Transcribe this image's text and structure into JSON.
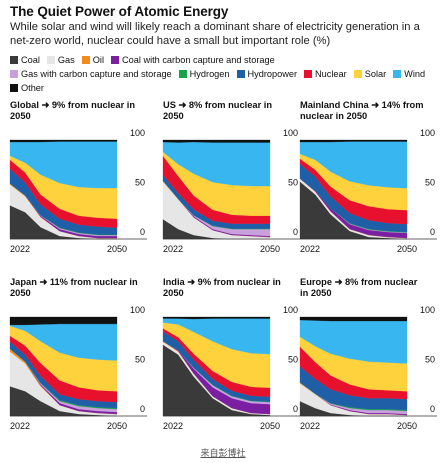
{
  "title": "The Quiet Power of Atomic Energy",
  "subtitle": "While solar and wind will likely reach a dominant share of electricity generation in a net-zero world, nuclear could have a small but important role (%)",
  "source_link": "来自彭博社",
  "legend": [
    {
      "name": "Coal",
      "color": "#3a3a3a"
    },
    {
      "name": "Gas",
      "color": "#e6e6e6"
    },
    {
      "name": "Oil",
      "color": "#f28a1e"
    },
    {
      "name": "Coal with carbon capture and storage",
      "color": "#7a1fa2"
    },
    {
      "name": "Gas with carbon capture and storage",
      "color": "#c9a0dc"
    },
    {
      "name": "Hydrogen",
      "color": "#16a34a"
    },
    {
      "name": "Hydropower",
      "color": "#1f5fa8"
    },
    {
      "name": "Nuclear",
      "color": "#e8112d"
    },
    {
      "name": "Solar",
      "color": "#fdd23c"
    },
    {
      "name": "Wind",
      "color": "#38b6f0"
    },
    {
      "name": "Other",
      "color": "#111111"
    }
  ],
  "chart_data": [
    {
      "type": "area",
      "stacked": true,
      "title": "Global ➜ 9% from nuclear in 2050",
      "x": [
        2022,
        2026,
        2030,
        2035,
        2040,
        2045,
        2050
      ],
      "x_ticks": [
        "2022",
        "2050"
      ],
      "y_ticks": [
        "0",
        "50",
        "100"
      ],
      "ylim": [
        0,
        100
      ],
      "series": [
        {
          "name": "Coal",
          "values": [
            34,
            27,
            12,
            3,
            1,
            0,
            0
          ]
        },
        {
          "name": "Gas",
          "values": [
            21,
            16,
            10,
            5,
            2,
            1,
            1
          ]
        },
        {
          "name": "Oil",
          "values": [
            1,
            1,
            0.5,
            0,
            0,
            0,
            0
          ]
        },
        {
          "name": "Coal with carbon capture and storage",
          "values": [
            0,
            0,
            1,
            2,
            2,
            2,
            2
          ]
        },
        {
          "name": "Gas with carbon capture and storage",
          "values": [
            0,
            0,
            0.5,
            1,
            1,
            1,
            1
          ]
        },
        {
          "name": "Hydrogen",
          "values": [
            0,
            0,
            0,
            0.5,
            0.5,
            0.5,
            0.5
          ]
        },
        {
          "name": "Hydropower",
          "values": [
            15,
            13,
            11,
            9,
            8,
            8,
            7
          ]
        },
        {
          "name": "Nuclear",
          "values": [
            9,
            10,
            10,
            10,
            9,
            9,
            9
          ]
        },
        {
          "name": "Solar",
          "values": [
            4,
            10,
            20,
            26,
            29,
            30,
            31
          ]
        },
        {
          "name": "Wind",
          "values": [
            14,
            21,
            33,
            42,
            46,
            47,
            47
          ]
        },
        {
          "name": "Other",
          "values": [
            2,
            2,
            2,
            1.5,
            1.5,
            1.5,
            1.5
          ]
        }
      ]
    },
    {
      "type": "area",
      "stacked": true,
      "title": "US ➜ 8% from nuclear in 2050",
      "x": [
        2022,
        2026,
        2030,
        2035,
        2040,
        2045,
        2050
      ],
      "x_ticks": [
        "2022",
        "2050"
      ],
      "y_ticks": [
        "0",
        "50",
        "100"
      ],
      "ylim": [
        0,
        100
      ],
      "series": [
        {
          "name": "Coal",
          "values": [
            20,
            10,
            4,
            1,
            0,
            0,
            0
          ]
        },
        {
          "name": "Gas",
          "values": [
            38,
            30,
            18,
            8,
            4,
            3,
            2
          ]
        },
        {
          "name": "Oil",
          "values": [
            1,
            0.5,
            0,
            0,
            0,
            0,
            0
          ]
        },
        {
          "name": "Coal with carbon capture and storage",
          "values": [
            0,
            0,
            1,
            1,
            1,
            1,
            1
          ]
        },
        {
          "name": "Gas with carbon capture and storage",
          "values": [
            0,
            0,
            1,
            3,
            5,
            6,
            7
          ]
        },
        {
          "name": "Hydrogen",
          "values": [
            0,
            0,
            0,
            0.5,
            0.5,
            0.5,
            0.5
          ]
        },
        {
          "name": "Hydropower",
          "values": [
            6,
            6,
            6,
            5,
            5,
            5,
            5
          ]
        },
        {
          "name": "Nuclear",
          "values": [
            19,
            17,
            14,
            11,
            9,
            8,
            8
          ]
        },
        {
          "name": "Solar",
          "values": [
            4,
            12,
            22,
            28,
            30,
            30,
            30
          ]
        },
        {
          "name": "Wind",
          "values": [
            10,
            22,
            32,
            40,
            43,
            44,
            44
          ]
        },
        {
          "name": "Other",
          "values": [
            2,
            2.5,
            2,
            2.5,
            2.5,
            2.5,
            2.5
          ]
        }
      ]
    },
    {
      "type": "area",
      "stacked": true,
      "title": "Mainland China ➜ 14% from nuclear in 2050",
      "x": [
        2022,
        2026,
        2030,
        2035,
        2040,
        2045,
        2050
      ],
      "x_ticks": [
        "2022",
        "2050"
      ],
      "y_ticks": [
        "0",
        "50",
        "100"
      ],
      "ylim": [
        0,
        100
      ],
      "series": [
        {
          "name": "Coal",
          "values": [
            58,
            45,
            25,
            8,
            2,
            1,
            0
          ]
        },
        {
          "name": "Gas",
          "values": [
            3,
            3,
            3,
            2,
            2,
            1,
            1
          ]
        },
        {
          "name": "Oil",
          "values": [
            0,
            0,
            0,
            0,
            0,
            0,
            0
          ]
        },
        {
          "name": "Coal with carbon capture and storage",
          "values": [
            0,
            1,
            3,
            5,
            5,
            5,
            5
          ]
        },
        {
          "name": "Gas with carbon capture and storage",
          "values": [
            0,
            0,
            0,
            0.5,
            0.5,
            0.5,
            0.5
          ]
        },
        {
          "name": "Hydrogen",
          "values": [
            0,
            0,
            0,
            0.5,
            0.5,
            0.5,
            0.5
          ]
        },
        {
          "name": "Hydropower",
          "values": [
            15,
            14,
            12,
            10,
            9,
            8,
            8
          ]
        },
        {
          "name": "Nuclear",
          "values": [
            5,
            7,
            10,
            13,
            14,
            14,
            14
          ]
        },
        {
          "name": "Solar",
          "values": [
            5,
            10,
            15,
            19,
            21,
            22,
            22
          ]
        },
        {
          "name": "Wind",
          "values": [
            12,
            18,
            30,
            40,
            44,
            46,
            47
          ]
        },
        {
          "name": "Other",
          "values": [
            2,
            2,
            2,
            1.5,
            1.5,
            1.5,
            1.5
          ]
        }
      ]
    },
    {
      "type": "area",
      "stacked": true,
      "title": "Japan ➜ 11% from nuclear in 2050",
      "x": [
        2022,
        2026,
        2030,
        2035,
        2040,
        2045,
        2050
      ],
      "x_ticks": [
        "2022",
        "2050"
      ],
      "y_ticks": [
        "0",
        "50",
        "100"
      ],
      "ylim": [
        0,
        100
      ],
      "series": [
        {
          "name": "Coal",
          "values": [
            30,
            25,
            15,
            5,
            2,
            1,
            0
          ]
        },
        {
          "name": "Gas",
          "values": [
            35,
            28,
            15,
            6,
            3,
            2,
            2
          ]
        },
        {
          "name": "Oil",
          "values": [
            3,
            2,
            1,
            0,
            0,
            0,
            0
          ]
        },
        {
          "name": "Coal with carbon capture and storage",
          "values": [
            0,
            0,
            1,
            2,
            2,
            2,
            2
          ]
        },
        {
          "name": "Gas with carbon capture and storage",
          "values": [
            0,
            0,
            1,
            2,
            3,
            3,
            3
          ]
        },
        {
          "name": "Hydrogen",
          "values": [
            0,
            0,
            0.5,
            1,
            1,
            1,
            1
          ]
        },
        {
          "name": "Hydropower",
          "values": [
            7,
            7,
            7,
            6,
            6,
            6,
            6
          ]
        },
        {
          "name": "Nuclear",
          "values": [
            6,
            9,
            13,
            14,
            12,
            11,
            11
          ]
        },
        {
          "name": "Solar",
          "values": [
            10,
            15,
            22,
            28,
            30,
            31,
            31
          ]
        },
        {
          "name": "Wind",
          "values": [
            1,
            6,
            17,
            29,
            34,
            36,
            37
          ]
        },
        {
          "name": "Other",
          "values": [
            8,
            8,
            7.5,
            7,
            7,
            7,
            7
          ]
        }
      ]
    },
    {
      "type": "area",
      "stacked": true,
      "title": "India ➜ 9% from nuclear in 2050",
      "x": [
        2022,
        2026,
        2030,
        2035,
        2040,
        2045,
        2050
      ],
      "x_ticks": [
        "2022",
        "2050"
      ],
      "y_ticks": [
        "0",
        "50",
        "100"
      ],
      "ylim": [
        0,
        100
      ],
      "series": [
        {
          "name": "Coal",
          "values": [
            72,
            62,
            40,
            18,
            6,
            2,
            1
          ]
        },
        {
          "name": "Gas",
          "values": [
            3,
            3,
            3,
            2,
            2,
            1,
            1
          ]
        },
        {
          "name": "Oil",
          "values": [
            0.5,
            0.5,
            0,
            0,
            0,
            0,
            0
          ]
        },
        {
          "name": "Coal with carbon capture and storage",
          "values": [
            0,
            1,
            5,
            9,
            10,
            10,
            10
          ]
        },
        {
          "name": "Gas with carbon capture and storage",
          "values": [
            0,
            0,
            1,
            2,
            2,
            2,
            2
          ]
        },
        {
          "name": "Hydrogen",
          "values": [
            0,
            0,
            0,
            0.5,
            0.5,
            0.5,
            0.5
          ]
        },
        {
          "name": "Hydropower",
          "values": [
            10,
            9,
            8,
            6,
            5,
            5,
            5
          ]
        },
        {
          "name": "Nuclear",
          "values": [
            3,
            4,
            6,
            8,
            9,
            9,
            9
          ]
        },
        {
          "name": "Solar",
          "values": [
            6,
            13,
            22,
            30,
            33,
            34,
            34
          ]
        },
        {
          "name": "Wind",
          "values": [
            4,
            6,
            13,
            23,
            31,
            35,
            36
          ]
        },
        {
          "name": "Other",
          "values": [
            1.5,
            1.5,
            2,
            1.5,
            1.5,
            1.5,
            1.5
          ]
        }
      ]
    },
    {
      "type": "area",
      "stacked": true,
      "title": "Europe ➜ 8% from nuclear in 2050",
      "x": [
        2022,
        2026,
        2030,
        2035,
        2040,
        2045,
        2050
      ],
      "x_ticks": [
        "2022",
        "2050"
      ],
      "y_ticks": [
        "0",
        "50",
        "100"
      ],
      "ylim": [
        0,
        100
      ],
      "series": [
        {
          "name": "Coal",
          "values": [
            15,
            8,
            3,
            1,
            0,
            0,
            0
          ]
        },
        {
          "name": "Gas",
          "values": [
            18,
            14,
            8,
            4,
            2,
            2,
            1
          ]
        },
        {
          "name": "Oil",
          "values": [
            1,
            0.5,
            0,
            0,
            0,
            0,
            0
          ]
        },
        {
          "name": "Coal with carbon capture and storage",
          "values": [
            0,
            0,
            0.5,
            1,
            1,
            1,
            1
          ]
        },
        {
          "name": "Gas with carbon capture and storage",
          "values": [
            0,
            0,
            1,
            2,
            3,
            3,
            3
          ]
        },
        {
          "name": "Hydrogen",
          "values": [
            0,
            0,
            0.5,
            1,
            1,
            1,
            1
          ]
        },
        {
          "name": "Hydropower",
          "values": [
            16,
            15,
            14,
            12,
            11,
            11,
            11
          ]
        },
        {
          "name": "Nuclear",
          "values": [
            20,
            17,
            14,
            11,
            9,
            8,
            8
          ]
        },
        {
          "name": "Solar",
          "values": [
            10,
            16,
            22,
            26,
            28,
            28,
            28
          ]
        },
        {
          "name": "Wind",
          "values": [
            17,
            26,
            33,
            38,
            41,
            42,
            43
          ]
        },
        {
          "name": "Other",
          "values": [
            3,
            3.5,
            4,
            4,
            4,
            4,
            4
          ]
        }
      ]
    }
  ]
}
